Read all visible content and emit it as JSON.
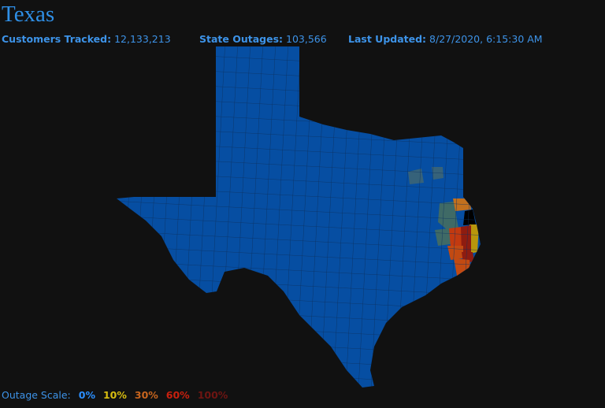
{
  "header": {
    "title": "Texas",
    "stats": [
      {
        "label": "Customers Tracked:",
        "value": "12,133,213"
      },
      {
        "label": "State Outages:",
        "value": "103,566"
      },
      {
        "label": "Last Updated:",
        "value": "8/27/2020, 6:15:30 AM"
      }
    ]
  },
  "legend": {
    "label": "Outage Scale:",
    "levels": [
      "0%",
      "10%",
      "30%",
      "60%",
      "100%"
    ]
  }
}
